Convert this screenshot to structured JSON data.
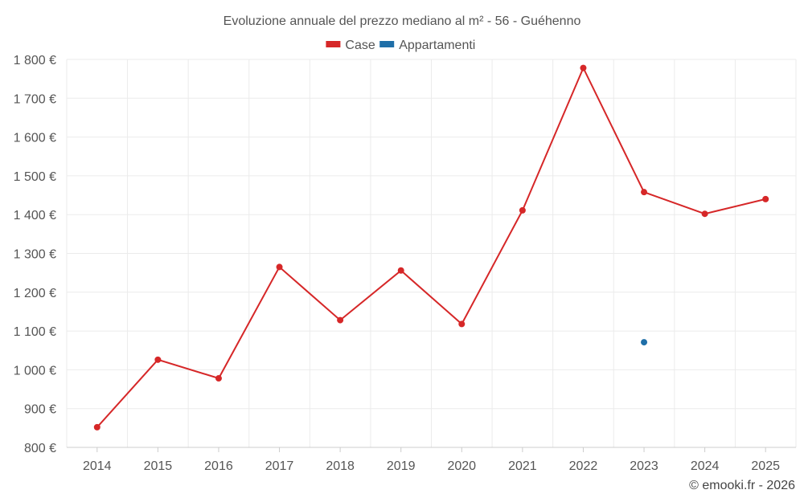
{
  "chart_data": {
    "type": "line",
    "title": "Evoluzione annuale del prezzo mediano al m² - 56 - Guéhenno",
    "x": [
      "2014",
      "2015",
      "2016",
      "2017",
      "2018",
      "2019",
      "2020",
      "2021",
      "2022",
      "2023",
      "2024",
      "2025"
    ],
    "series": [
      {
        "name": "Case",
        "color": "#d62728",
        "values": [
          852,
          1026,
          978,
          1265,
          1128,
          1256,
          1118,
          1411,
          1778,
          1458,
          1402,
          1440
        ]
      },
      {
        "name": "Appartamenti",
        "color": "#1f6fa8",
        "values": [
          null,
          null,
          null,
          null,
          null,
          null,
          null,
          null,
          null,
          1071,
          null,
          null
        ]
      }
    ],
    "ylim": [
      800,
      1800
    ],
    "yticks": [
      800,
      900,
      1000,
      1100,
      1200,
      1300,
      1400,
      1500,
      1600,
      1700,
      1800
    ],
    "ytick_labels": [
      "800 €",
      "900 €",
      "1 000 €",
      "1 100 €",
      "1 200 €",
      "1 300 €",
      "1 400 €",
      "1 500 €",
      "1 600 €",
      "1 700 €",
      "1 800 €"
    ],
    "grid": true,
    "legend_position": "top-center"
  },
  "credit": "© emooki.fr - 2026"
}
